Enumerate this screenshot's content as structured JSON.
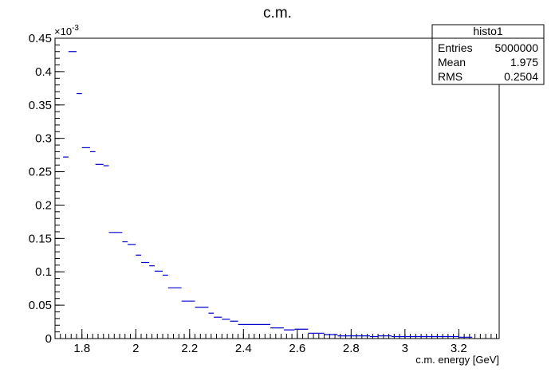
{
  "chart_data": {
    "type": "histogram",
    "title": "c.m.",
    "xlabel": "c.m. energy [GeV]",
    "ylabel": "",
    "y_exponent_label": "×10",
    "y_exponent_power": "-3",
    "xlim": [
      1.7,
      3.35
    ],
    "ylim": [
      0,
      0.45
    ],
    "x_ticks": [
      "1.8",
      "2",
      "2.2",
      "2.4",
      "2.6",
      "2.8",
      "3",
      "3.2"
    ],
    "x_tick_values": [
      1.8,
      2.0,
      2.2,
      2.4,
      2.6,
      2.8,
      3.0,
      3.2
    ],
    "y_ticks": [
      "0",
      "0.05",
      "0.1",
      "0.15",
      "0.2",
      "0.25",
      "0.3",
      "0.35",
      "0.4",
      "0.45"
    ],
    "y_tick_values": [
      0,
      0.05,
      0.1,
      0.15,
      0.2,
      0.25,
      0.3,
      0.35,
      0.4,
      0.45
    ],
    "series_color": "#0000cc",
    "bins": [
      {
        "x0": 1.73,
        "x1": 1.75,
        "y": 0.272
      },
      {
        "x0": 1.75,
        "x1": 1.78,
        "y": 0.43
      },
      {
        "x0": 1.78,
        "x1": 1.8,
        "y": 0.367
      },
      {
        "x0": 1.8,
        "x1": 1.83,
        "y": 0.286
      },
      {
        "x0": 1.83,
        "x1": 1.85,
        "y": 0.28
      },
      {
        "x0": 1.85,
        "x1": 1.88,
        "y": 0.261
      },
      {
        "x0": 1.88,
        "x1": 1.9,
        "y": 0.259
      },
      {
        "x0": 1.9,
        "x1": 1.95,
        "y": 0.159
      },
      {
        "x0": 1.95,
        "x1": 1.97,
        "y": 0.145
      },
      {
        "x0": 1.97,
        "x1": 2.0,
        "y": 0.141
      },
      {
        "x0": 2.0,
        "x1": 2.02,
        "y": 0.125
      },
      {
        "x0": 2.02,
        "x1": 2.05,
        "y": 0.114
      },
      {
        "x0": 2.05,
        "x1": 2.07,
        "y": 0.109
      },
      {
        "x0": 2.07,
        "x1": 2.1,
        "y": 0.101
      },
      {
        "x0": 2.1,
        "x1": 2.12,
        "y": 0.095
      },
      {
        "x0": 2.12,
        "x1": 2.17,
        "y": 0.076
      },
      {
        "x0": 2.17,
        "x1": 2.22,
        "y": 0.056
      },
      {
        "x0": 2.22,
        "x1": 2.27,
        "y": 0.047
      },
      {
        "x0": 2.27,
        "x1": 2.29,
        "y": 0.038
      },
      {
        "x0": 2.29,
        "x1": 2.32,
        "y": 0.032
      },
      {
        "x0": 2.32,
        "x1": 2.35,
        "y": 0.029
      },
      {
        "x0": 2.35,
        "x1": 2.38,
        "y": 0.026
      },
      {
        "x0": 2.38,
        "x1": 2.5,
        "y": 0.021
      },
      {
        "x0": 2.5,
        "x1": 2.55,
        "y": 0.016
      },
      {
        "x0": 2.55,
        "x1": 2.59,
        "y": 0.013
      },
      {
        "x0": 2.59,
        "x1": 2.64,
        "y": 0.014
      },
      {
        "x0": 2.64,
        "x1": 2.7,
        "y": 0.008
      },
      {
        "x0": 2.7,
        "x1": 2.75,
        "y": 0.006
      },
      {
        "x0": 2.75,
        "x1": 2.87,
        "y": 0.004
      },
      {
        "x0": 2.87,
        "x1": 2.9,
        "y": 0.003
      },
      {
        "x0": 2.9,
        "x1": 2.95,
        "y": 0.004
      },
      {
        "x0": 2.95,
        "x1": 3.2,
        "y": 0.003
      },
      {
        "x0": 3.2,
        "x1": 3.25,
        "y": 0.002
      }
    ]
  },
  "stats": {
    "name": "histo1",
    "rows": [
      {
        "label": "Entries",
        "value": "5000000"
      },
      {
        "label": "Mean",
        "value": "1.975"
      },
      {
        "label": "RMS",
        "value": "0.2504"
      }
    ]
  }
}
